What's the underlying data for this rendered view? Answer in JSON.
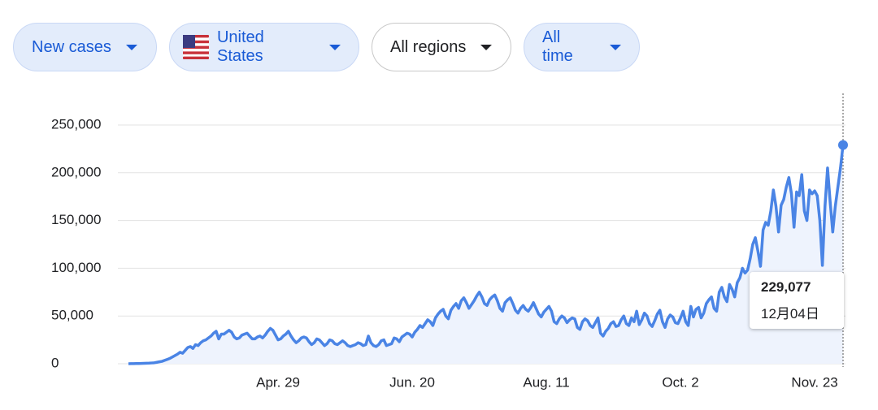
{
  "controls": [
    {
      "label": "New cases"
    },
    {
      "label": "United States"
    },
    {
      "label": "All regions"
    },
    {
      "label": "All time"
    }
  ],
  "chart_data": {
    "type": "line",
    "color": "#4a84e5",
    "area_color": "#eef3fd",
    "grid": true,
    "ylim": [
      0,
      250000
    ],
    "yticks": [
      0,
      {
        "value": 50000,
        "label": "50,000"
      },
      {
        "value": 100000,
        "label": "100,000"
      },
      {
        "value": 150000,
        "label": "150,000"
      },
      {
        "value": 200000,
        "label": "200,000"
      },
      {
        "value": 250000,
        "label": "250,000"
      }
    ],
    "categories": [
      null,
      null,
      null,
      null,
      null,
      null,
      null,
      null,
      null,
      null,
      null,
      null,
      null,
      null,
      null,
      null,
      null,
      null,
      null,
      null,
      null,
      null,
      null,
      null,
      null,
      null,
      null,
      null,
      null,
      null,
      null,
      null,
      null,
      null,
      null,
      null,
      null,
      null,
      null,
      null,
      null,
      null,
      null,
      null,
      null,
      null,
      null,
      null,
      null,
      null,
      null,
      null,
      null,
      null,
      null,
      null,
      null,
      null,
      "Apr. 29",
      null,
      null,
      null,
      null,
      null,
      null,
      null,
      null,
      null,
      null,
      null,
      null,
      null,
      null,
      null,
      null,
      null,
      null,
      null,
      null,
      null,
      null,
      null,
      null,
      null,
      null,
      null,
      null,
      null,
      null,
      null,
      null,
      null,
      null,
      null,
      null,
      null,
      null,
      null,
      null,
      null,
      null,
      null,
      null,
      null,
      null,
      null,
      null,
      null,
      null,
      null,
      "Jun. 20",
      null,
      null,
      null,
      null,
      null,
      null,
      null,
      null,
      null,
      null,
      null,
      null,
      null,
      null,
      null,
      null,
      null,
      null,
      null,
      null,
      null,
      null,
      null,
      null,
      null,
      null,
      null,
      null,
      null,
      null,
      null,
      null,
      null,
      null,
      null,
      null,
      null,
      null,
      null,
      null,
      null,
      null,
      null,
      null,
      null,
      null,
      null,
      null,
      null,
      null,
      null,
      "Aug. 11",
      null,
      null,
      null,
      null,
      null,
      null,
      null,
      null,
      null,
      null,
      null,
      null,
      null,
      null,
      null,
      null,
      null,
      null,
      null,
      null,
      null,
      null,
      null,
      null,
      null,
      null,
      null,
      null,
      null,
      null,
      null,
      null,
      null,
      null,
      null,
      null,
      null,
      null,
      null,
      null,
      null,
      null,
      null,
      null,
      null,
      null,
      null,
      null,
      null,
      null,
      null,
      "Oct. 2",
      null,
      null,
      null,
      null,
      null,
      null,
      null,
      null,
      null,
      null,
      null,
      null,
      null,
      null,
      null,
      null,
      null,
      null,
      null,
      null,
      null,
      null,
      null,
      null,
      null,
      null,
      null,
      null,
      null,
      null,
      null,
      null,
      null,
      null,
      null,
      null,
      null,
      null,
      null,
      null,
      null,
      null,
      null,
      null,
      null,
      null,
      null,
      null,
      null,
      null,
      null,
      "Nov. 23",
      null,
      null,
      null,
      null,
      null,
      null,
      null,
      null,
      null,
      null,
      null
    ],
    "values": [
      0,
      100,
      100,
      200,
      200,
      300,
      400,
      500,
      600,
      800,
      1000,
      1500,
      2000,
      2500,
      3500,
      4500,
      5500,
      7000,
      8500,
      10000,
      12000,
      11000,
      14000,
      17000,
      18000,
      16000,
      20000,
      19000,
      22000,
      24000,
      25000,
      27000,
      29000,
      32000,
      34000,
      26000,
      31000,
      31000,
      33000,
      35000,
      33000,
      28000,
      26000,
      27000,
      30000,
      31000,
      32000,
      29000,
      26000,
      26000,
      28000,
      29000,
      27000,
      30000,
      34000,
      37000,
      35000,
      30000,
      25000,
      26000,
      29000,
      31000,
      34000,
      29000,
      25000,
      22000,
      24000,
      27000,
      28000,
      27000,
      23000,
      20000,
      22000,
      26000,
      25000,
      22000,
      19000,
      21000,
      25000,
      24000,
      21000,
      20000,
      22000,
      24000,
      22000,
      19000,
      18000,
      19000,
      20000,
      22000,
      21000,
      19000,
      20000,
      29000,
      22000,
      19000,
      18000,
      20000,
      24000,
      25000,
      19000,
      20000,
      21000,
      27000,
      26000,
      23000,
      28000,
      30000,
      32000,
      31000,
      28000,
      33000,
      36000,
      40000,
      38000,
      42000,
      46000,
      44000,
      40000,
      48000,
      52000,
      55000,
      57000,
      50000,
      47000,
      56000,
      60000,
      63000,
      58000,
      66000,
      69000,
      64000,
      58000,
      62000,
      66000,
      71000,
      75000,
      70000,
      63000,
      61000,
      67000,
      70000,
      72000,
      66000,
      58000,
      55000,
      64000,
      67000,
      69000,
      63000,
      56000,
      53000,
      58000,
      61000,
      57000,
      55000,
      59000,
      64000,
      58000,
      52000,
      49000,
      54000,
      57000,
      60000,
      55000,
      44000,
      42000,
      47000,
      50000,
      48000,
      43000,
      46000,
      48000,
      47000,
      38000,
      36000,
      44000,
      47000,
      45000,
      40000,
      38000,
      43000,
      48000,
      32000,
      29000,
      34000,
      37000,
      42000,
      44000,
      39000,
      40000,
      46000,
      50000,
      42000,
      40000,
      48000,
      44000,
      55000,
      41000,
      46000,
      53000,
      50000,
      42000,
      39000,
      45000,
      52000,
      56000,
      44000,
      38000,
      47000,
      51000,
      49000,
      43000,
      42000,
      48000,
      55000,
      44000,
      40000,
      60000,
      49000,
      57000,
      59000,
      48000,
      53000,
      63000,
      67000,
      70000,
      58000,
      55000,
      75000,
      80000,
      70000,
      65000,
      83000,
      78000,
      70000,
      85000,
      90000,
      100000,
      95000,
      98000,
      110000,
      125000,
      132000,
      118000,
      102000,
      140000,
      148000,
      145000,
      160000,
      182000,
      165000,
      138000,
      166000,
      172000,
      185000,
      195000,
      178000,
      143000,
      180000,
      176000,
      198000,
      160000,
      150000,
      182000,
      178000,
      181000,
      176000,
      150000,
      103000,
      165000,
      205000,
      170000,
      138000,
      165000,
      185000,
      205000,
      229077
    ],
    "tooltip": {
      "label": "229,077",
      "date": "12月04日"
    }
  }
}
